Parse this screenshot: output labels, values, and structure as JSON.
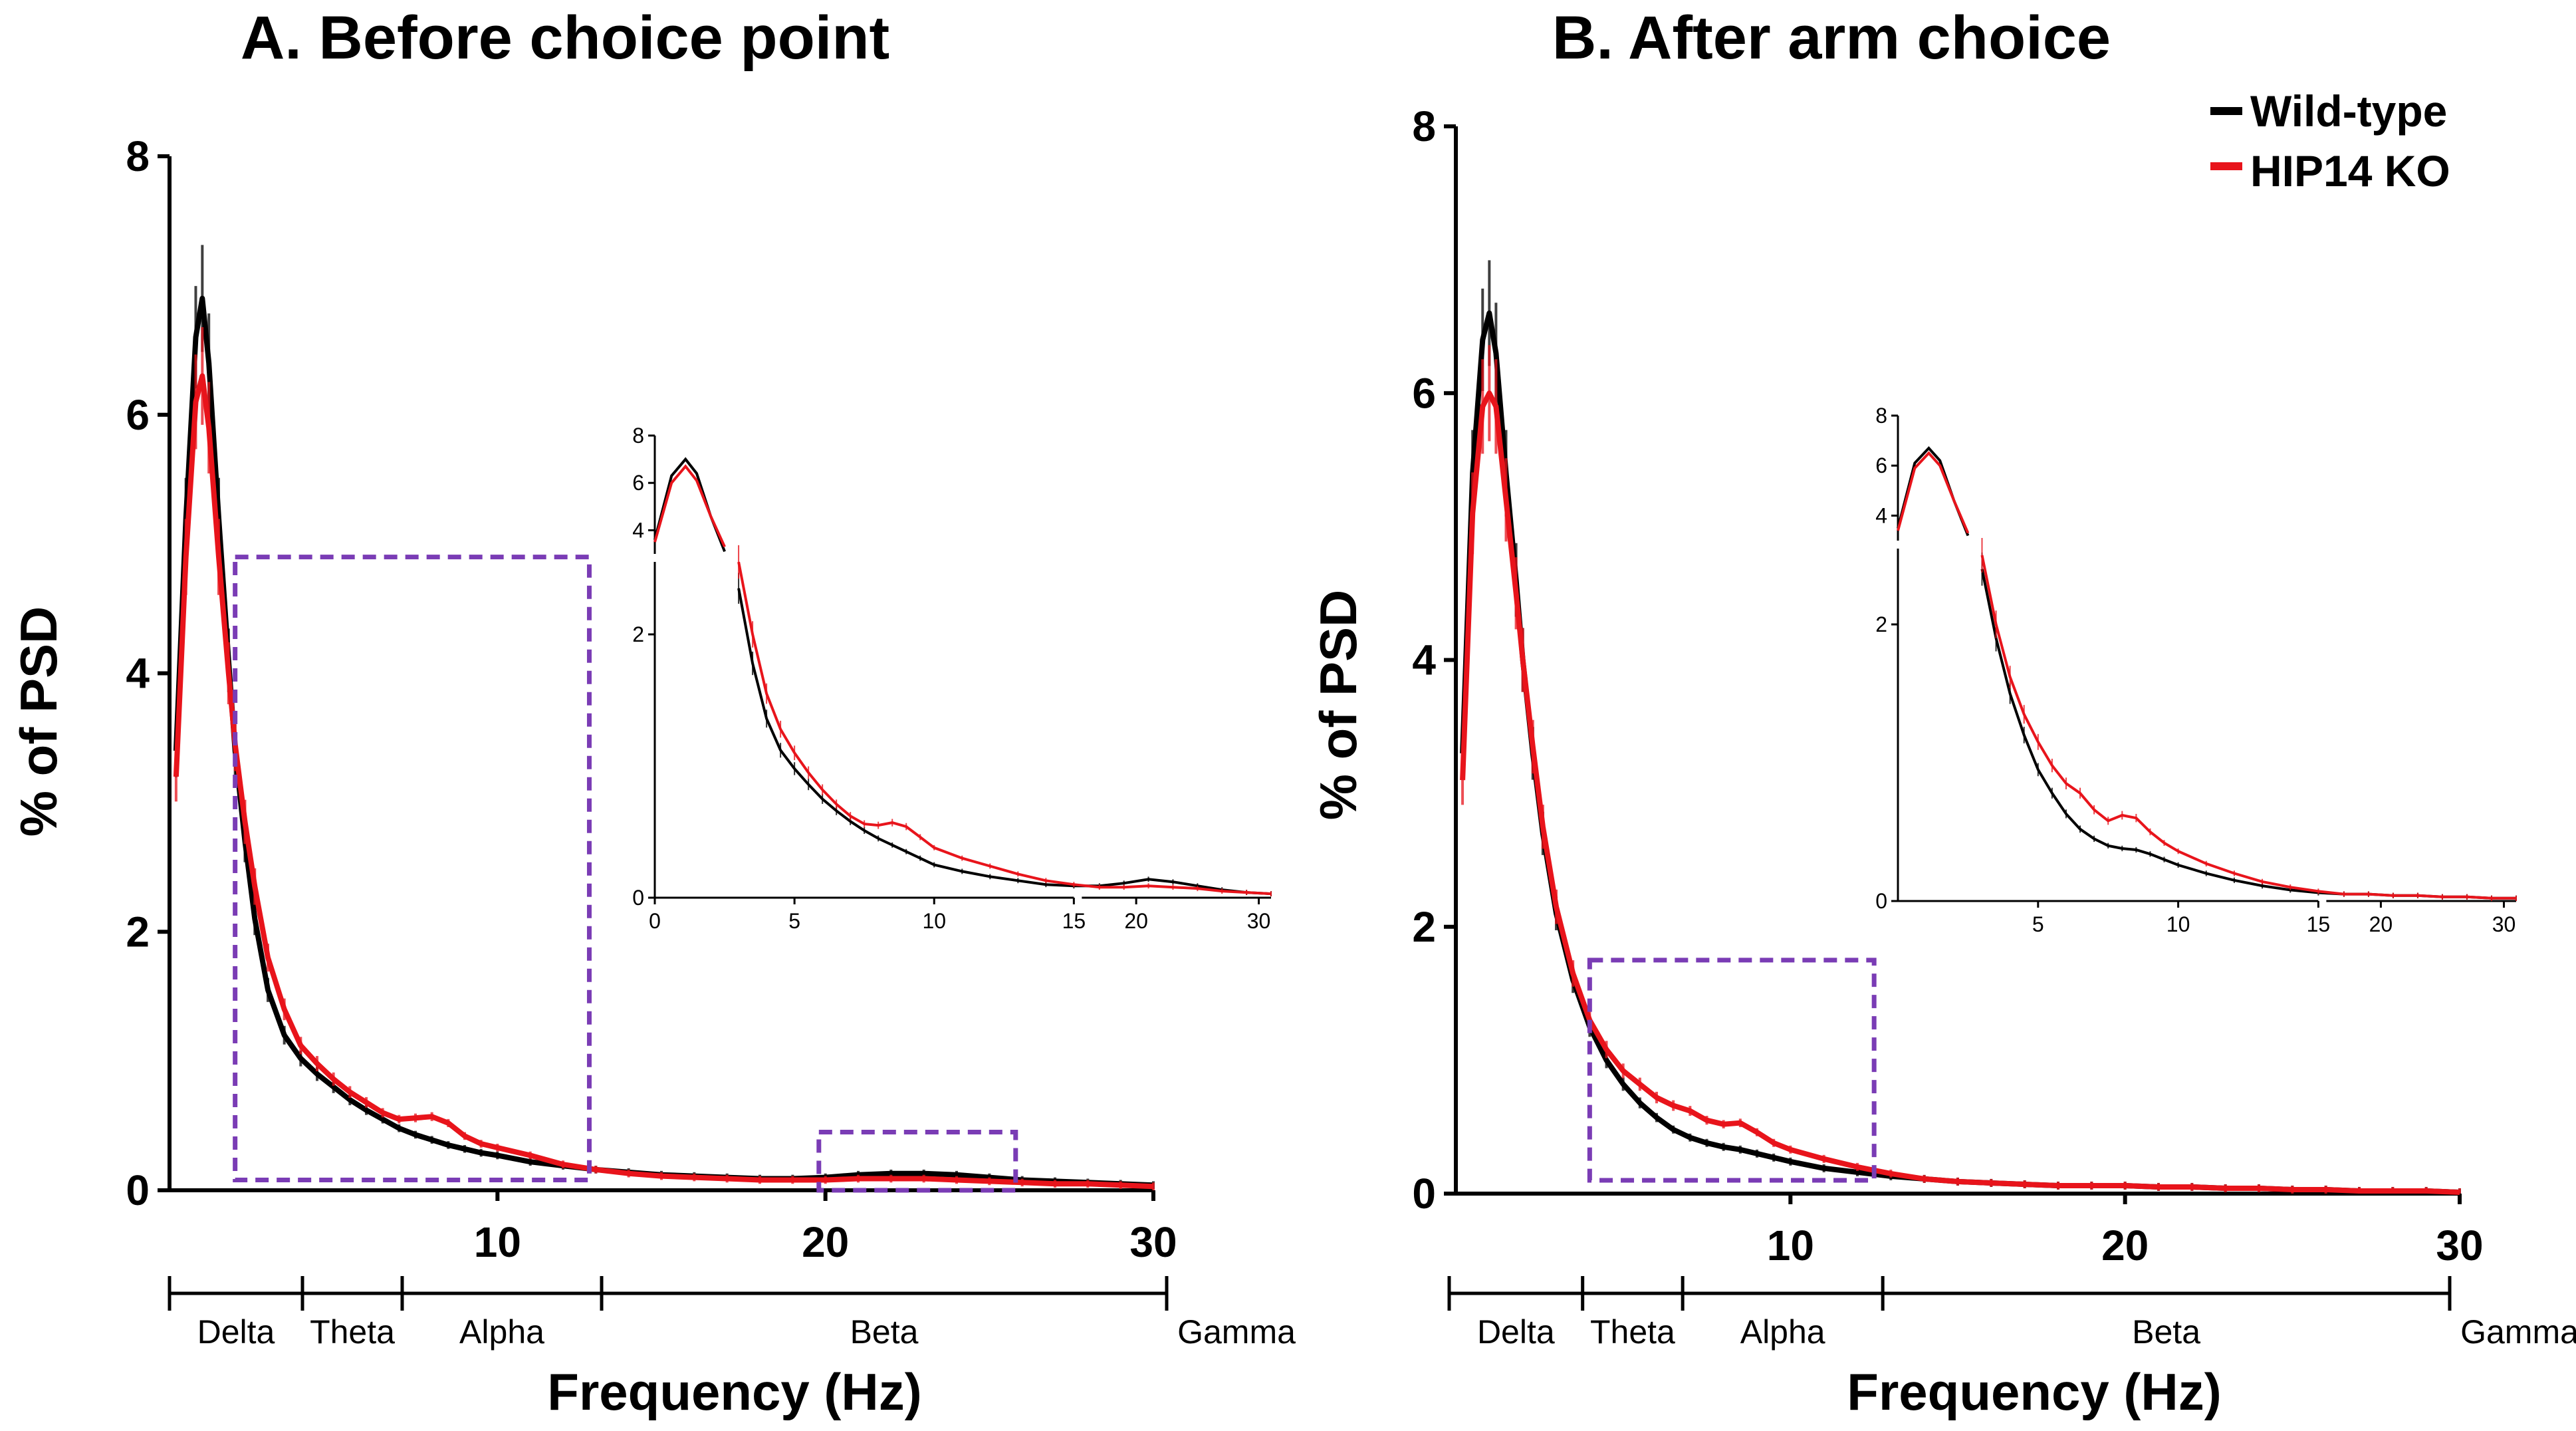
{
  "legend": [
    {
      "label": "Wild-type",
      "color": "#000000"
    },
    {
      "label": "HIP14 KO",
      "color": "#e8141b"
    }
  ],
  "highlight_color": "#7a3cb5",
  "chart_data": [
    {
      "type": "line",
      "title": "A. Before choice point",
      "xlabel": "Frequency (Hz)",
      "ylabel": "% of PSD",
      "xlim": [
        0,
        30
      ],
      "ylim": [
        0,
        8
      ],
      "xticks": [
        10,
        20,
        30
      ],
      "yticks": [
        0,
        2,
        4,
        6,
        8
      ],
      "bands": [
        "Delta",
        "Theta",
        "Alpha",
        "Beta",
        "Gamma"
      ],
      "band_edges": [
        0,
        4,
        7,
        13,
        30
      ],
      "highlight_boxes": [
        {
          "x": [
            2,
            12.8
          ],
          "y": [
            0.08,
            4.9
          ]
        },
        {
          "x": [
            19.8,
            25.8
          ],
          "y": [
            0.0,
            0.45
          ]
        }
      ],
      "series": [
        {
          "name": "Wild-type",
          "x": [
            0.2,
            0.5,
            0.8,
            1.0,
            1.2,
            1.5,
            1.8,
            2.0,
            2.3,
            2.6,
            3.0,
            3.5,
            4.0,
            4.5,
            5.0,
            5.5,
            6.0,
            6.5,
            7.0,
            7.5,
            8.0,
            8.5,
            9.0,
            9.5,
            10.0,
            11.0,
            12.0,
            13.0,
            14.0,
            15.0,
            16.0,
            17.0,
            18.0,
            19.0,
            20.0,
            21.0,
            22.0,
            23.0,
            24.0,
            25.0,
            26.0,
            27.0,
            28.0,
            29.0,
            30.0
          ],
          "y": [
            3.4,
            5.2,
            6.6,
            6.9,
            6.4,
            5.2,
            4.1,
            3.4,
            2.7,
            2.1,
            1.55,
            1.2,
            1.02,
            0.9,
            0.8,
            0.7,
            0.62,
            0.55,
            0.48,
            0.43,
            0.39,
            0.35,
            0.32,
            0.29,
            0.27,
            0.22,
            0.19,
            0.16,
            0.14,
            0.12,
            0.11,
            0.1,
            0.09,
            0.09,
            0.1,
            0.12,
            0.13,
            0.13,
            0.12,
            0.1,
            0.08,
            0.07,
            0.06,
            0.05,
            0.04
          ]
        },
        {
          "name": "HIP14 KO",
          "x": [
            0.2,
            0.5,
            0.8,
            1.0,
            1.2,
            1.5,
            1.8,
            2.0,
            2.3,
            2.6,
            3.0,
            3.5,
            4.0,
            4.5,
            5.0,
            5.5,
            6.0,
            6.5,
            7.0,
            7.5,
            8.0,
            8.5,
            9.0,
            9.5,
            10.0,
            11.0,
            12.0,
            13.0,
            14.0,
            15.0,
            16.0,
            17.0,
            18.0,
            19.0,
            20.0,
            21.0,
            22.0,
            23.0,
            24.0,
            25.0,
            26.0,
            27.0,
            28.0,
            29.0,
            30.0
          ],
          "y": [
            3.2,
            4.9,
            6.1,
            6.3,
            5.9,
            4.9,
            4.0,
            3.45,
            2.85,
            2.35,
            1.8,
            1.4,
            1.12,
            0.98,
            0.86,
            0.76,
            0.68,
            0.6,
            0.55,
            0.56,
            0.57,
            0.52,
            0.42,
            0.36,
            0.33,
            0.27,
            0.2,
            0.16,
            0.13,
            0.11,
            0.1,
            0.09,
            0.08,
            0.08,
            0.08,
            0.09,
            0.09,
            0.09,
            0.08,
            0.07,
            0.06,
            0.05,
            0.05,
            0.04,
            0.03
          ]
        }
      ],
      "inset": {
        "xticks": [
          0,
          5,
          10,
          15,
          20,
          30
        ],
        "yticks_upper": [
          4,
          6,
          8
        ],
        "yticks_lower": [
          0,
          2
        ],
        "xlim": [
          0,
          31
        ],
        "wt_y": [
          3.6,
          6.3,
          7.0,
          6.4,
          4.6,
          3.1,
          2.35,
          1.78,
          1.36,
          1.12,
          0.98,
          0.86,
          0.75,
          0.66,
          0.58,
          0.51,
          0.45,
          0.4,
          0.35,
          0.3,
          0.25,
          0.2,
          0.16,
          0.13,
          0.1,
          0.09,
          0.09,
          0.11,
          0.14,
          0.12,
          0.09,
          0.06,
          0.04,
          0.03
        ],
        "ko_y": [
          3.5,
          6.0,
          6.7,
          6.1,
          4.6,
          3.3,
          2.55,
          2.0,
          1.55,
          1.28,
          1.1,
          0.95,
          0.82,
          0.71,
          0.62,
          0.56,
          0.55,
          0.57,
          0.54,
          0.46,
          0.38,
          0.3,
          0.24,
          0.18,
          0.13,
          0.1,
          0.08,
          0.08,
          0.09,
          0.08,
          0.07,
          0.05,
          0.04,
          0.03
        ],
        "inset_x": [
          0.0,
          0.6,
          1.1,
          1.5,
          2.0,
          2.5,
          3.0,
          3.5,
          4.0,
          4.5,
          5.0,
          5.5,
          6.0,
          6.5,
          7.0,
          7.5,
          8.0,
          8.5,
          9.0,
          9.5,
          10.0,
          11.0,
          12.0,
          13.0,
          14.0,
          15.0,
          17.0,
          19.0,
          21.0,
          23.0,
          25.0,
          27.0,
          29.0,
          31.0
        ]
      }
    },
    {
      "type": "line",
      "title": "B. After arm choice",
      "xlabel": "Frequency (Hz)",
      "ylabel": "% of PSD",
      "xlim": [
        0,
        30
      ],
      "ylim": [
        0,
        8
      ],
      "xticks": [
        10,
        20,
        30
      ],
      "yticks": [
        0,
        2,
        4,
        6,
        8
      ],
      "bands": [
        "Delta",
        "Theta",
        "Alpha",
        "Beta",
        "Gamma"
      ],
      "band_edges": [
        0,
        4,
        7,
        13,
        30
      ],
      "highlight_boxes": [
        {
          "x": [
            4,
            12.5
          ],
          "y": [
            0.1,
            1.75
          ]
        }
      ],
      "series": [
        {
          "name": "Wild-type",
          "x": [
            0.2,
            0.5,
            0.8,
            1.0,
            1.2,
            1.5,
            1.8,
            2.0,
            2.3,
            2.6,
            3.0,
            3.5,
            4.0,
            4.5,
            5.0,
            5.5,
            6.0,
            6.5,
            7.0,
            7.5,
            8.0,
            8.5,
            9.0,
            9.5,
            10.0,
            11.0,
            12.0,
            13.0,
            14.0,
            15.0,
            16.0,
            17.0,
            18.0,
            19.0,
            20.0,
            21.0,
            22.0,
            23.0,
            24.0,
            25.0,
            26.0,
            27.0,
            28.0,
            29.0,
            30.0
          ],
          "y": [
            3.3,
            5.4,
            6.4,
            6.6,
            6.3,
            5.4,
            4.6,
            4.0,
            3.3,
            2.7,
            2.1,
            1.6,
            1.25,
            1.0,
            0.82,
            0.68,
            0.57,
            0.48,
            0.42,
            0.38,
            0.35,
            0.33,
            0.3,
            0.27,
            0.24,
            0.19,
            0.16,
            0.13,
            0.11,
            0.09,
            0.08,
            0.07,
            0.06,
            0.06,
            0.06,
            0.05,
            0.05,
            0.04,
            0.04,
            0.03,
            0.03,
            0.02,
            0.02,
            0.02,
            0.01
          ]
        },
        {
          "name": "HIP14 KO",
          "x": [
            0.2,
            0.5,
            0.8,
            1.0,
            1.2,
            1.5,
            1.8,
            2.0,
            2.3,
            2.6,
            3.0,
            3.5,
            4.0,
            4.5,
            5.0,
            5.5,
            6.0,
            6.5,
            7.0,
            7.5,
            8.0,
            8.5,
            9.0,
            9.5,
            10.0,
            11.0,
            12.0,
            13.0,
            14.0,
            15.0,
            16.0,
            17.0,
            18.0,
            19.0,
            20.0,
            21.0,
            22.0,
            23.0,
            24.0,
            25.0,
            26.0,
            27.0,
            28.0,
            29.0,
            30.0
          ],
          "y": [
            3.1,
            5.1,
            5.9,
            6.0,
            5.9,
            5.2,
            4.5,
            4.0,
            3.35,
            2.75,
            2.15,
            1.65,
            1.3,
            1.08,
            0.92,
            0.82,
            0.72,
            0.66,
            0.62,
            0.55,
            0.52,
            0.53,
            0.46,
            0.38,
            0.33,
            0.26,
            0.2,
            0.15,
            0.11,
            0.09,
            0.08,
            0.07,
            0.06,
            0.06,
            0.06,
            0.05,
            0.05,
            0.04,
            0.04,
            0.03,
            0.03,
            0.02,
            0.02,
            0.02,
            0.01
          ]
        }
      ],
      "inset": {
        "xticks": [
          5,
          10,
          15,
          20,
          30
        ],
        "yticks_upper": [
          4,
          6,
          8
        ],
        "yticks_lower": [
          0,
          2
        ],
        "xlim": [
          0,
          31
        ],
        "wt_y": [
          3.5,
          6.1,
          6.7,
          6.2,
          4.6,
          3.2,
          2.4,
          1.9,
          1.5,
          1.2,
          0.95,
          0.78,
          0.63,
          0.52,
          0.45,
          0.4,
          0.38,
          0.37,
          0.34,
          0.3,
          0.26,
          0.2,
          0.15,
          0.11,
          0.08,
          0.06,
          0.05,
          0.05,
          0.04,
          0.04,
          0.03,
          0.03,
          0.02,
          0.02
        ],
        "ko_y": [
          3.4,
          5.9,
          6.5,
          6.0,
          4.6,
          3.3,
          2.5,
          2.0,
          1.62,
          1.35,
          1.15,
          0.98,
          0.85,
          0.78,
          0.66,
          0.58,
          0.62,
          0.6,
          0.5,
          0.42,
          0.36,
          0.27,
          0.2,
          0.14,
          0.1,
          0.07,
          0.05,
          0.05,
          0.04,
          0.04,
          0.03,
          0.03,
          0.02,
          0.02
        ],
        "inset_x": [
          0.0,
          0.6,
          1.1,
          1.5,
          2.0,
          2.5,
          3.0,
          3.5,
          4.0,
          4.5,
          5.0,
          5.5,
          6.0,
          6.5,
          7.0,
          7.5,
          8.0,
          8.5,
          9.0,
          9.5,
          10.0,
          11.0,
          12.0,
          13.0,
          14.0,
          15.0,
          17.0,
          19.0,
          21.0,
          23.0,
          25.0,
          27.0,
          29.0,
          31.0
        ]
      }
    }
  ]
}
